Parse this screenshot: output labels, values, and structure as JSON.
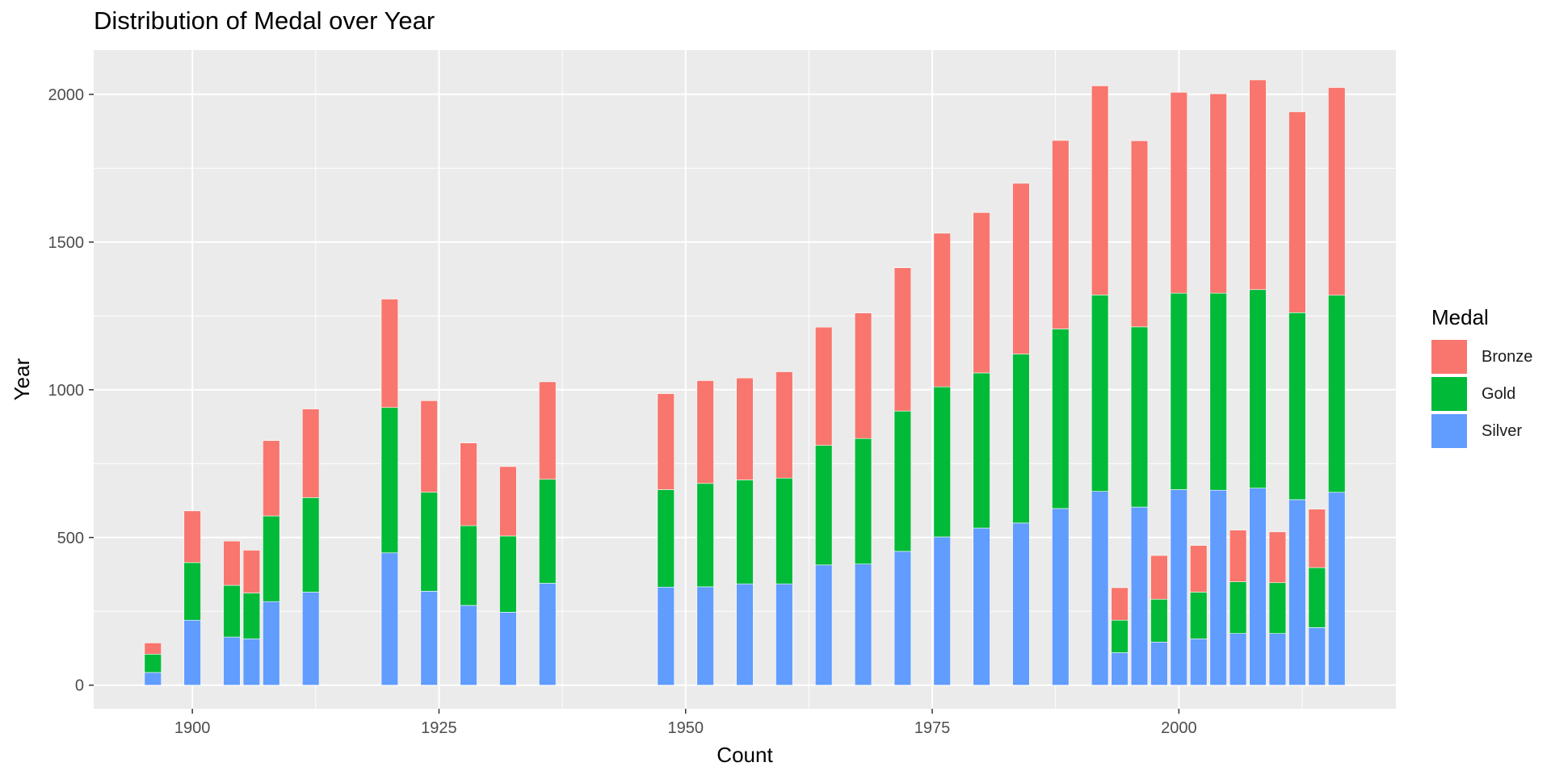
{
  "chart_data": {
    "type": "bar",
    "stacked": true,
    "title": "Distribution of Medal over Year",
    "xlabel": "Count",
    "ylabel": "Year",
    "xlim": [
      1890,
      2022
    ],
    "ylim": [
      -80,
      2150
    ],
    "x_ticks": [
      1900,
      1925,
      1950,
      1975,
      2000
    ],
    "y_ticks": [
      0,
      500,
      1000,
      1500,
      2000
    ],
    "grid": true,
    "legend": {
      "title": "Medal",
      "position": "right"
    },
    "series_order": [
      "Silver",
      "Gold",
      "Bronze"
    ],
    "x": [
      1896,
      1900,
      1904,
      1906,
      1908,
      1912,
      1920,
      1924,
      1928,
      1932,
      1936,
      1948,
      1952,
      1956,
      1960,
      1964,
      1968,
      1972,
      1976,
      1980,
      1984,
      1988,
      1992,
      1994,
      1996,
      1998,
      2000,
      2002,
      2004,
      2006,
      2008,
      2010,
      2012,
      2014,
      2016
    ],
    "series": [
      {
        "name": "Bronze",
        "color": "#F8766D",
        "values": [
          38,
          175,
          150,
          145,
          255,
          300,
          367,
          310,
          280,
          235,
          330,
          325,
          348,
          345,
          360,
          400,
          425,
          485,
          520,
          543,
          578,
          638,
          708,
          110,
          630,
          148,
          680,
          158,
          675,
          175,
          710,
          172,
          680,
          198,
          703
        ]
      },
      {
        "name": "Gold",
        "color": "#00BA38",
        "values": [
          62,
          195,
          175,
          155,
          290,
          320,
          492,
          335,
          270,
          258,
          352,
          330,
          350,
          352,
          358,
          405,
          425,
          475,
          508,
          525,
          572,
          608,
          665,
          110,
          610,
          145,
          665,
          158,
          667,
          175,
          672,
          172,
          633,
          203,
          667
        ]
      },
      {
        "name": "Silver",
        "color": "#619CFF",
        "values": [
          43,
          220,
          163,
          157,
          283,
          315,
          448,
          318,
          270,
          247,
          345,
          332,
          333,
          343,
          343,
          407,
          410,
          453,
          502,
          532,
          549,
          598,
          656,
          110,
          603,
          146,
          662,
          157,
          660,
          175,
          667,
          175,
          628,
          195,
          653
        ]
      }
    ]
  }
}
